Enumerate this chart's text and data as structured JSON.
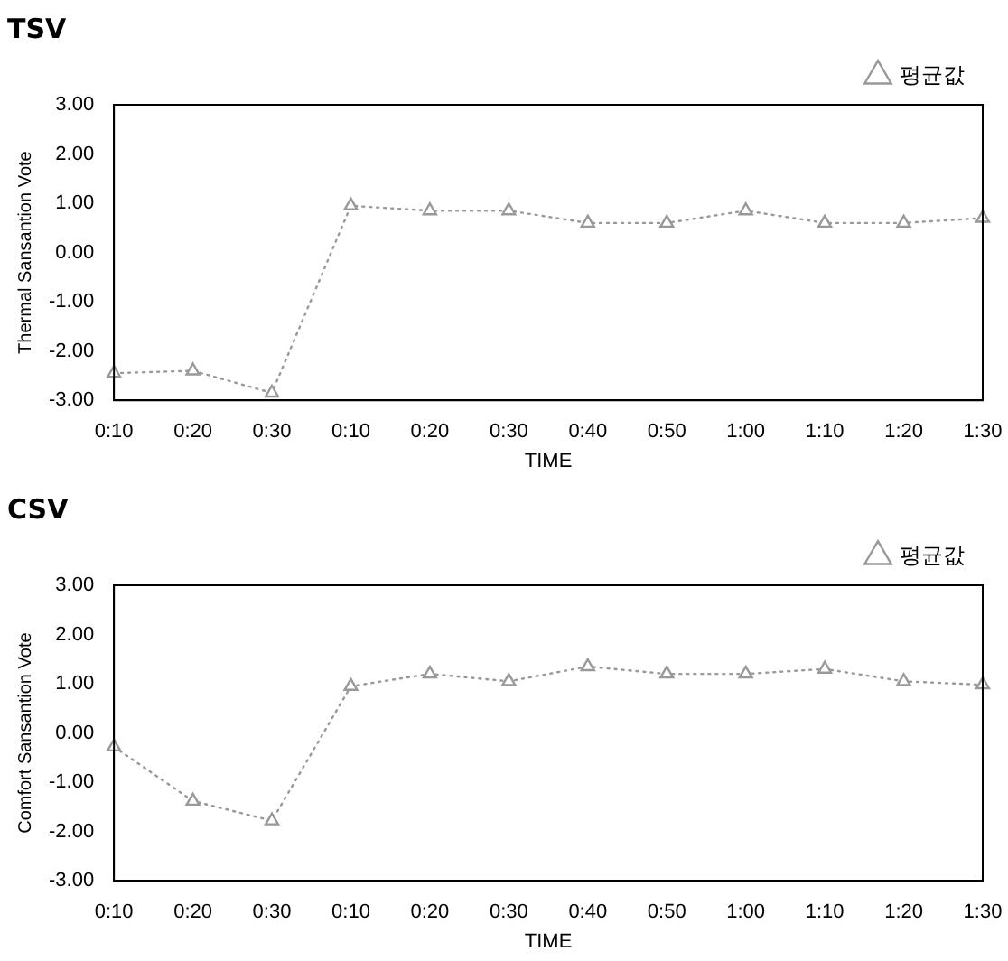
{
  "chart_data": [
    {
      "type": "line",
      "title": "TSV",
      "xlabel": "TIME",
      "ylabel": "Thermal Sansantion Vote",
      "categories": [
        "0:10",
        "0:20",
        "0:30",
        "0:10",
        "0:20",
        "0:30",
        "0:40",
        "0:50",
        "1:00",
        "1:10",
        "1:20",
        "1:30"
      ],
      "series": [
        {
          "name": "평균값",
          "color": "#999999",
          "values": [
            -2.45,
            -2.4,
            -2.85,
            0.95,
            0.85,
            0.85,
            0.6,
            0.6,
            0.85,
            0.6,
            0.6,
            0.7
          ]
        }
      ],
      "ylim": [
        -3,
        3
      ],
      "yticks": [
        {
          "value": -3,
          "label": "-3.00"
        },
        {
          "value": -2,
          "label": "-2.00"
        },
        {
          "value": -1,
          "label": "-1.00"
        },
        {
          "value": 0,
          "label": "0.00"
        },
        {
          "value": 1,
          "label": "1.00"
        },
        {
          "value": 2,
          "label": "2.00"
        },
        {
          "value": 3,
          "label": "3.00"
        }
      ],
      "grid": false,
      "legend": "top right",
      "marker": "triangle",
      "line_style": "dotted"
    },
    {
      "type": "line",
      "title": "CSV",
      "xlabel": "TIME",
      "ylabel": "Comfort Sansantion Vote",
      "categories": [
        "0:10",
        "0:20",
        "0:30",
        "0:10",
        "0:20",
        "0:30",
        "0:40",
        "0:50",
        "1:00",
        "1:10",
        "1:20",
        "1:30"
      ],
      "series": [
        {
          "name": "평균값",
          "color": "#999999",
          "values": [
            -0.28,
            -1.38,
            -1.78,
            0.95,
            1.2,
            1.05,
            1.35,
            1.2,
            1.2,
            1.3,
            1.05,
            0.98
          ]
        }
      ],
      "ylim": [
        -3,
        3
      ],
      "yticks": [
        {
          "value": -3,
          "label": "-3.00"
        },
        {
          "value": -2,
          "label": "-2.00"
        },
        {
          "value": -1,
          "label": "-1.00"
        },
        {
          "value": 0,
          "label": "0.00"
        },
        {
          "value": 1,
          "label": "1.00"
        },
        {
          "value": 2,
          "label": "2.00"
        },
        {
          "value": 3,
          "label": "3.00"
        }
      ],
      "grid": false,
      "legend": "top right",
      "marker": "triangle",
      "line_style": "dotted"
    }
  ]
}
